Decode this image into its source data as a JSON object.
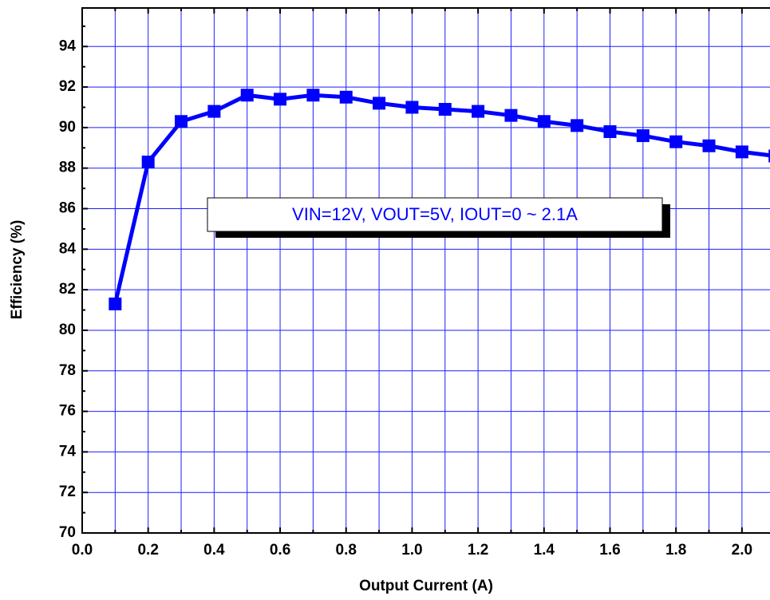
{
  "chart_data": {
    "type": "line",
    "x_label": "Output Current (A)",
    "y_label": "Efficiency (%)",
    "annotation": "VIN=12V, VOUT=5V, IOUT=0 ~ 2.1A",
    "x": [
      0.1,
      0.2,
      0.3,
      0.4,
      0.5,
      0.6,
      0.7,
      0.8,
      0.9,
      1.0,
      1.1,
      1.2,
      1.3,
      1.4,
      1.5,
      1.6,
      1.7,
      1.8,
      1.9,
      2.0,
      2.1
    ],
    "series": [
      {
        "name": "Efficiency",
        "color": "#0000ff",
        "values": [
          81.3,
          88.3,
          90.3,
          90.8,
          91.6,
          91.4,
          91.6,
          91.5,
          91.2,
          91.0,
          90.9,
          90.8,
          90.6,
          90.3,
          90.1,
          89.8,
          89.6,
          89.3,
          89.1,
          88.8,
          88.6
        ]
      }
    ],
    "xlim": [
      0,
      2.085
    ],
    "ylim": [
      70,
      95.9
    ],
    "xticks": [
      {
        "value": 0,
        "label": "0.0"
      },
      {
        "value": 0.2,
        "label": "0.2"
      },
      {
        "value": 0.4,
        "label": "0.4"
      },
      {
        "value": 0.6,
        "label": "0.6"
      },
      {
        "value": 0.8,
        "label": "0.8"
      },
      {
        "value": 1.0,
        "label": "1.0"
      },
      {
        "value": 1.2,
        "label": "1.2"
      },
      {
        "value": 1.4,
        "label": "1.4"
      },
      {
        "value": 1.6,
        "label": "1.6"
      },
      {
        "value": 1.8,
        "label": "1.8"
      },
      {
        "value": 2.0,
        "label": "2.0"
      }
    ],
    "xminor": [
      0.1,
      0.3,
      0.5,
      0.7,
      0.9,
      1.1,
      1.3,
      1.5,
      1.7,
      1.9
    ],
    "yticks": [
      70,
      72,
      74,
      76,
      78,
      80,
      82,
      84,
      86,
      88,
      90,
      92,
      94
    ],
    "yminor": [
      71,
      73,
      75,
      77,
      79,
      81,
      83,
      85,
      87,
      89,
      91,
      93,
      95
    ],
    "grid": true,
    "grid_color": "#1e1eff"
  }
}
